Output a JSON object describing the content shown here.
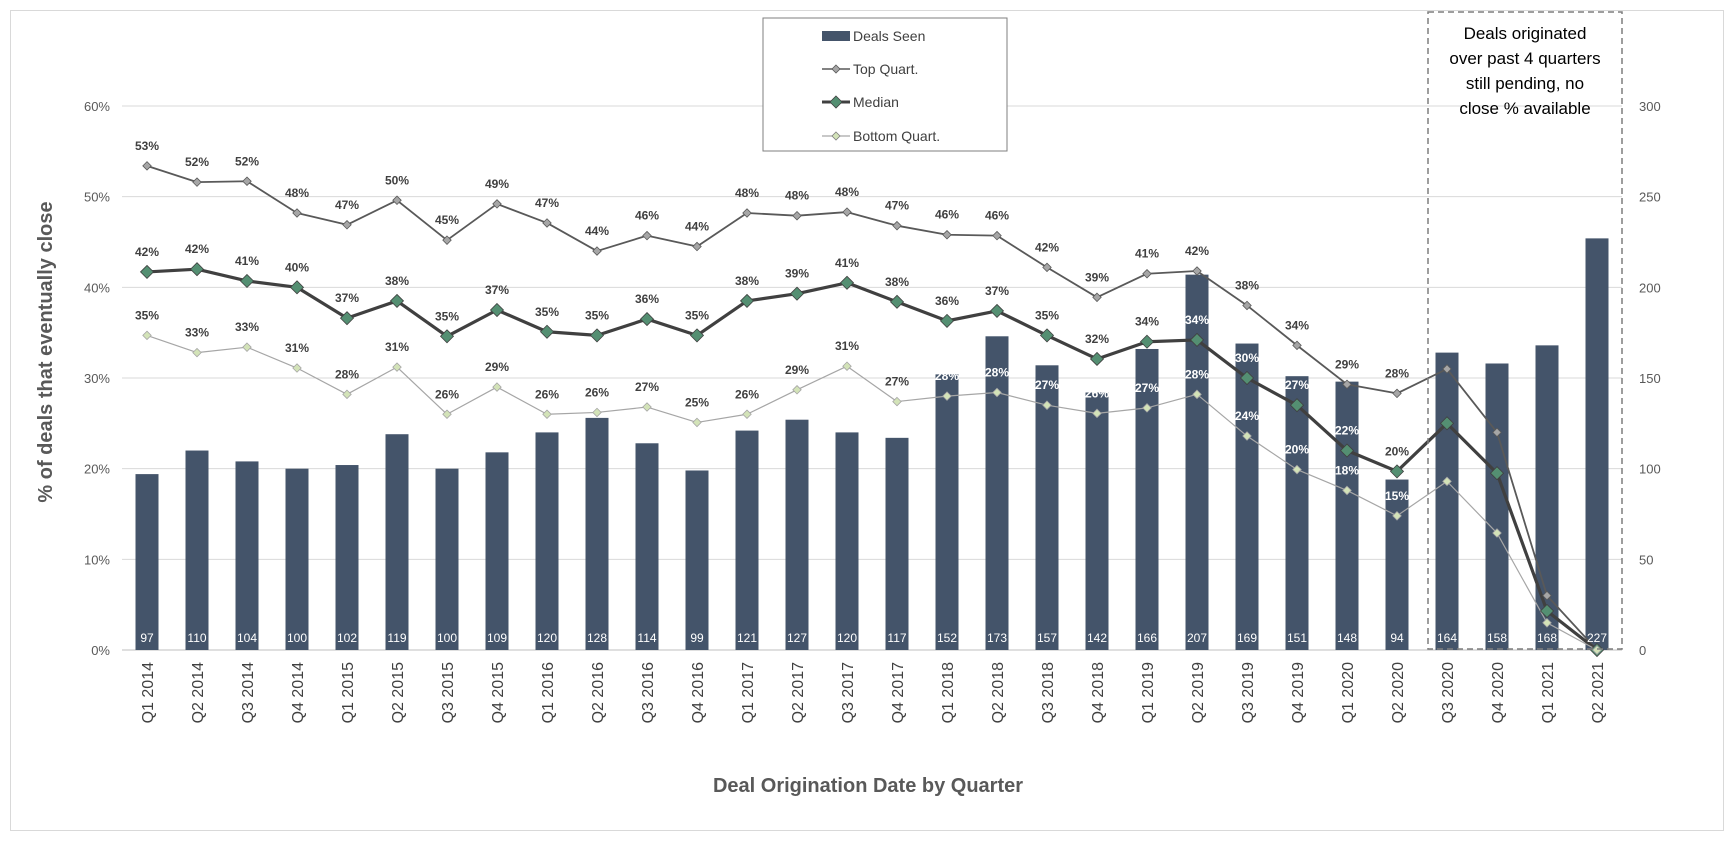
{
  "chart_data": {
    "type": "bar",
    "categories": [
      "Q1 2014",
      "Q2 2014",
      "Q3 2014",
      "Q4 2014",
      "Q1 2015",
      "Q2 2015",
      "Q3 2015",
      "Q4 2015",
      "Q1 2016",
      "Q2 2016",
      "Q3 2016",
      "Q4 2016",
      "Q1 2017",
      "Q2 2017",
      "Q3 2017",
      "Q4 2017",
      "Q1 2018",
      "Q2 2018",
      "Q3 2018",
      "Q4 2018",
      "Q1 2019",
      "Q2 2019",
      "Q3 2019",
      "Q4 2019",
      "Q1 2020",
      "Q2 2020",
      "Q3 2020",
      "Q4 2020",
      "Q1 2021",
      "Q2 2021"
    ],
    "bars": {
      "name": "Deals Seen",
      "values": [
        97,
        110,
        104,
        100,
        102,
        119,
        100,
        109,
        120,
        128,
        114,
        99,
        121,
        127,
        120,
        117,
        152,
        173,
        157,
        142,
        166,
        207,
        169,
        151,
        148,
        94,
        164,
        158,
        168,
        227
      ],
      "color": "#44546A",
      "axis": "right"
    },
    "series": [
      {
        "name": "Top Quart.",
        "values": [
          53.4,
          51.6,
          51.7,
          48.2,
          46.9,
          49.6,
          45.2,
          49.2,
          47.1,
          44.0,
          45.7,
          44.5,
          48.2,
          47.9,
          48.3,
          46.8,
          45.8,
          45.7,
          42.2,
          38.9,
          41.5,
          41.8,
          38.0,
          33.6,
          29.3,
          28.3,
          31.0,
          24.0,
          6.0,
          0.0
        ],
        "labels": [
          "53%",
          "52%",
          "52%",
          "48%",
          "47%",
          "50%",
          "45%",
          "49%",
          "47%",
          "44%",
          "46%",
          "44%",
          "48%",
          "48%",
          "48%",
          "47%",
          "46%",
          "46%",
          "42%",
          "39%",
          "41%",
          "42%",
          "38%",
          "34%",
          "29%",
          "28%",
          "",
          "",
          "",
          ""
        ],
        "color": "#595959"
      },
      {
        "name": "Median",
        "values": [
          41.7,
          42.0,
          40.7,
          40.0,
          36.6,
          38.5,
          34.6,
          37.5,
          35.1,
          34.7,
          36.5,
          34.7,
          38.5,
          39.3,
          40.5,
          38.4,
          36.3,
          37.4,
          34.7,
          32.1,
          34.0,
          34.2,
          30.0,
          27.0,
          22.0,
          19.7,
          25.0,
          19.5,
          4.3,
          0.0
        ],
        "labels": [
          "42%",
          "42%",
          "41%",
          "40%",
          "37%",
          "38%",
          "35%",
          "37%",
          "35%",
          "35%",
          "36%",
          "35%",
          "38%",
          "39%",
          "41%",
          "38%",
          "36%",
          "37%",
          "35%",
          "32%",
          "34%",
          "34%",
          "30%",
          "27%",
          "22%",
          "20%",
          "",
          "",
          "",
          ""
        ],
        "color": "#404040",
        "marker_color": "#548F72"
      },
      {
        "name": "Bottom Quart.",
        "values": [
          34.7,
          32.8,
          33.4,
          31.1,
          28.2,
          31.2,
          26.0,
          29.0,
          26.0,
          26.2,
          26.8,
          25.1,
          26.0,
          28.7,
          31.3,
          27.4,
          28.0,
          28.4,
          27.0,
          26.1,
          26.7,
          28.2,
          23.6,
          19.9,
          17.6,
          14.8,
          18.6,
          12.9,
          3.0,
          0.0
        ],
        "labels": [
          "35%",
          "33%",
          "33%",
          "31%",
          "28%",
          "31%",
          "26%",
          "29%",
          "26%",
          "26%",
          "27%",
          "25%",
          "26%",
          "29%",
          "31%",
          "27%",
          "28%",
          "28%",
          "27%",
          "26%",
          "27%",
          "28%",
          "24%",
          "20%",
          "18%",
          "15%",
          "",
          "",
          "",
          ""
        ],
        "color": "#a6a6a6",
        "marker_color": "#d3e3b8"
      }
    ],
    "xlabel": "Deal Origination Date by Quarter",
    "ylabel": "% of deals that eventually close",
    "ylim": [
      0,
      60
    ],
    "yticks": [
      "0%",
      "10%",
      "20%",
      "30%",
      "40%",
      "50%",
      "60%"
    ],
    "y2lim": [
      0,
      300
    ],
    "y2ticks": [
      "0",
      "50",
      "100",
      "150",
      "200",
      "250",
      "300"
    ],
    "grid": true,
    "legend": {
      "placement": "top-center",
      "entries": [
        "Deals Seen",
        "Top Quart.",
        "Median",
        "Bottom Quart."
      ]
    },
    "annotation": {
      "text_lines": [
        "Deals originated",
        "over past 4 quarters",
        "still pending, no",
        "close % available"
      ],
      "from_category": "Q3 2020",
      "to_category": "Q2 2021"
    }
  }
}
